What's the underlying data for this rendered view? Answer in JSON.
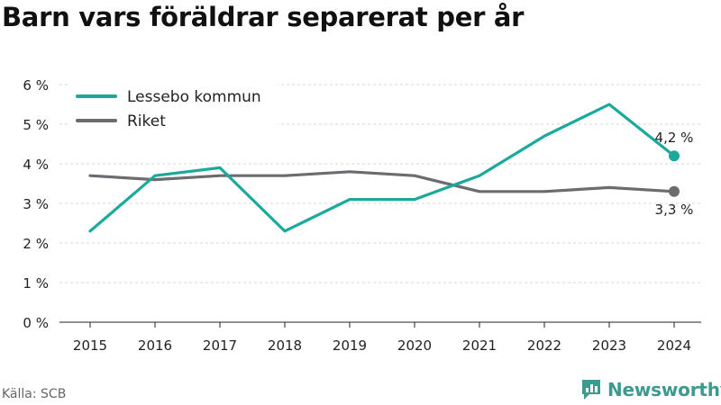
{
  "title": "Barn vars föräldrar separerat per år",
  "source": "Källa: SCB",
  "brand": {
    "name": "Newsworthy",
    "icon": "newsworthy-logo-icon"
  },
  "colors": {
    "lessebo": "#1aa99b",
    "riket": "#6d6b70",
    "grid": "#d4d4d4",
    "axis": "#222222",
    "brand": "#3d9a8f"
  },
  "chart_data": {
    "type": "line",
    "categories": [
      "2015",
      "2016",
      "2017",
      "2018",
      "2019",
      "2020",
      "2021",
      "2022",
      "2023",
      "2024"
    ],
    "series": [
      {
        "name": "Lessebo kommun",
        "values": [
          2.3,
          3.7,
          3.9,
          2.3,
          3.1,
          3.1,
          3.7,
          4.7,
          5.5,
          4.2
        ],
        "end_label": "4,2 %"
      },
      {
        "name": "Riket",
        "values": [
          3.7,
          3.6,
          3.7,
          3.7,
          3.8,
          3.7,
          3.3,
          3.3,
          3.4,
          3.3
        ],
        "end_label": "3,3 %"
      }
    ],
    "ylim": [
      0,
      6
    ],
    "yticks": [
      0,
      1,
      2,
      3,
      4,
      5,
      6
    ],
    "ytick_labels": [
      "0 %",
      "1 %",
      "2 %",
      "3 %",
      "4 %",
      "5 %",
      "6 %"
    ],
    "grid": true,
    "legend_position": "top-left"
  }
}
